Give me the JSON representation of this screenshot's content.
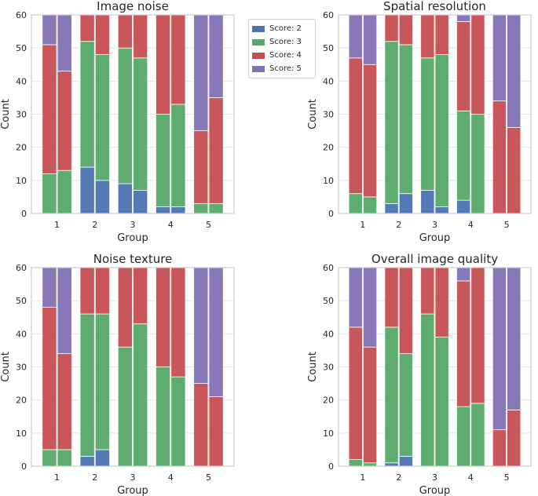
{
  "colors": {
    "score2": "#4c72b0",
    "score3": "#55a868",
    "score4": "#c44e52",
    "score5": "#8172b3",
    "frame": "#cccccc",
    "grid": "#e5e5e5"
  },
  "legend": {
    "placement": "top-center",
    "items": [
      {
        "label": "Score: 2",
        "color": "#4c72b0"
      },
      {
        "label": "Score: 3",
        "color": "#55a868"
      },
      {
        "label": "Score: 4",
        "color": "#c44e52"
      },
      {
        "label": "Score: 5",
        "color": "#8172b3"
      }
    ]
  },
  "chart_data": [
    {
      "type": "bar",
      "stacked": true,
      "title": "Image noise",
      "xlabel": "Group",
      "ylabel": "Count",
      "categories": [
        "1",
        "2",
        "3",
        "4",
        "5"
      ],
      "bars_per_category": 2,
      "ylim": [
        0,
        60
      ],
      "yticks": [
        0,
        10,
        20,
        30,
        40,
        50,
        60
      ],
      "grid": true,
      "series": [
        {
          "name": "Score: 2",
          "values": [
            [
              0,
              0
            ],
            [
              14,
              10
            ],
            [
              9,
              7
            ],
            [
              2,
              2
            ],
            [
              0,
              0
            ]
          ]
        },
        {
          "name": "Score: 3",
          "values": [
            [
              12,
              13
            ],
            [
              38,
              38
            ],
            [
              41,
              40
            ],
            [
              28,
              31
            ],
            [
              3,
              3
            ]
          ]
        },
        {
          "name": "Score: 4",
          "values": [
            [
              39,
              30
            ],
            [
              8,
              12
            ],
            [
              10,
              13
            ],
            [
              30,
              27
            ],
            [
              22,
              32
            ]
          ]
        },
        {
          "name": "Score: 5",
          "values": [
            [
              9,
              17
            ],
            [
              0,
              0
            ],
            [
              0,
              0
            ],
            [
              0,
              0
            ],
            [
              35,
              25
            ]
          ]
        }
      ]
    },
    {
      "type": "bar",
      "stacked": true,
      "title": "Spatial resolution",
      "xlabel": "Group",
      "ylabel": "Count",
      "categories": [
        "1",
        "2",
        "3",
        "4",
        "5"
      ],
      "bars_per_category": 2,
      "ylim": [
        0,
        60
      ],
      "yticks": [
        0,
        10,
        20,
        30,
        40,
        50,
        60
      ],
      "grid": true,
      "series": [
        {
          "name": "Score: 2",
          "values": [
            [
              0,
              0
            ],
            [
              3,
              6
            ],
            [
              7,
              2
            ],
            [
              4,
              0
            ],
            [
              0,
              0
            ]
          ]
        },
        {
          "name": "Score: 3",
          "values": [
            [
              6,
              5
            ],
            [
              49,
              45
            ],
            [
              40,
              46
            ],
            [
              27,
              30
            ],
            [
              0,
              0
            ]
          ]
        },
        {
          "name": "Score: 4",
          "values": [
            [
              41,
              40
            ],
            [
              8,
              9
            ],
            [
              13,
              12
            ],
            [
              27,
              30
            ],
            [
              34,
              26
            ]
          ]
        },
        {
          "name": "Score: 5",
          "values": [
            [
              13,
              15
            ],
            [
              0,
              0
            ],
            [
              0,
              0
            ],
            [
              2,
              0
            ],
            [
              26,
              34
            ]
          ]
        }
      ]
    },
    {
      "type": "bar",
      "stacked": true,
      "title": "Noise texture",
      "xlabel": "Group",
      "ylabel": "Count",
      "categories": [
        "1",
        "2",
        "3",
        "4",
        "5"
      ],
      "bars_per_category": 2,
      "ylim": [
        0,
        60
      ],
      "yticks": [
        0,
        10,
        20,
        30,
        40,
        50,
        60
      ],
      "grid": true,
      "series": [
        {
          "name": "Score: 2",
          "values": [
            [
              0,
              0
            ],
            [
              3,
              5
            ],
            [
              0,
              0
            ],
            [
              0,
              0
            ],
            [
              0,
              0
            ]
          ]
        },
        {
          "name": "Score: 3",
          "values": [
            [
              5,
              5
            ],
            [
              43,
              41
            ],
            [
              36,
              43
            ],
            [
              30,
              27
            ],
            [
              0,
              0
            ]
          ]
        },
        {
          "name": "Score: 4",
          "values": [
            [
              43,
              29
            ],
            [
              14,
              14
            ],
            [
              24,
              17
            ],
            [
              30,
              33
            ],
            [
              25,
              21
            ]
          ]
        },
        {
          "name": "Score: 5",
          "values": [
            [
              12,
              26
            ],
            [
              0,
              0
            ],
            [
              0,
              0
            ],
            [
              0,
              0
            ],
            [
              35,
              39
            ]
          ]
        }
      ]
    },
    {
      "type": "bar",
      "stacked": true,
      "title": "Overall image quality",
      "xlabel": "Group",
      "ylabel": "Count",
      "categories": [
        "1",
        "2",
        "3",
        "4",
        "5"
      ],
      "bars_per_category": 2,
      "ylim": [
        0,
        60
      ],
      "yticks": [
        0,
        10,
        20,
        30,
        40,
        50,
        60
      ],
      "grid": true,
      "series": [
        {
          "name": "Score: 2",
          "values": [
            [
              0,
              0
            ],
            [
              1,
              3
            ],
            [
              0,
              0
            ],
            [
              0,
              0
            ],
            [
              0,
              0
            ]
          ]
        },
        {
          "name": "Score: 3",
          "values": [
            [
              2,
              1
            ],
            [
              41,
              31
            ],
            [
              46,
              39
            ],
            [
              18,
              19
            ],
            [
              0,
              0
            ]
          ]
        },
        {
          "name": "Score: 4",
          "values": [
            [
              40,
              35
            ],
            [
              18,
              26
            ],
            [
              14,
              21
            ],
            [
              38,
              41
            ],
            [
              11,
              17
            ]
          ]
        },
        {
          "name": "Score: 5",
          "values": [
            [
              18,
              24
            ],
            [
              0,
              0
            ],
            [
              0,
              0
            ],
            [
              4,
              0
            ],
            [
              49,
              43
            ]
          ]
        }
      ]
    }
  ]
}
